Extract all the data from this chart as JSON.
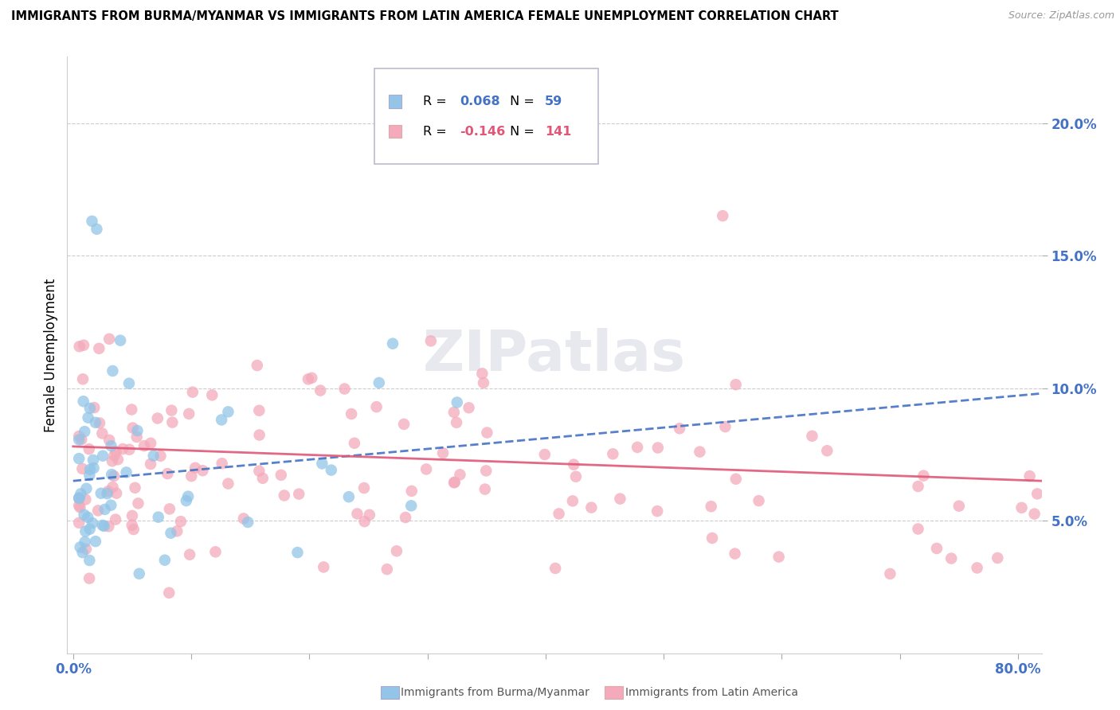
{
  "title": "IMMIGRANTS FROM BURMA/MYANMAR VS IMMIGRANTS FROM LATIN AMERICA FEMALE UNEMPLOYMENT CORRELATION CHART",
  "source": "Source: ZipAtlas.com",
  "ylabel": "Female Unemployment",
  "y_ticks": [
    0.05,
    0.1,
    0.15,
    0.2
  ],
  "y_tick_labels": [
    "5.0%",
    "10.0%",
    "15.0%",
    "20.0%"
  ],
  "x_ticks": [
    0.0,
    0.1,
    0.2,
    0.3,
    0.4,
    0.5,
    0.6,
    0.7,
    0.8
  ],
  "xlim": [
    -0.005,
    0.82
  ],
  "ylim": [
    0.0,
    0.225
  ],
  "series1_name": "Immigrants from Burma/Myanmar",
  "series1_R": 0.068,
  "series1_N": 59,
  "series1_color": "#92C5E8",
  "series1_edge_color": "#6AAAD4",
  "series1_trend_color": "#4472C4",
  "series2_name": "Immigrants from Latin America",
  "series2_R": -0.146,
  "series2_N": 141,
  "series2_color": "#F4AABB",
  "series2_edge_color": "#E080A0",
  "series2_trend_color": "#E05878",
  "watermark": "ZIPatlas",
  "tick_label_color": "#4472C4",
  "legend_R1": "0.068",
  "legend_N1": "59",
  "legend_R2": "-0.146",
  "legend_N2": "141"
}
